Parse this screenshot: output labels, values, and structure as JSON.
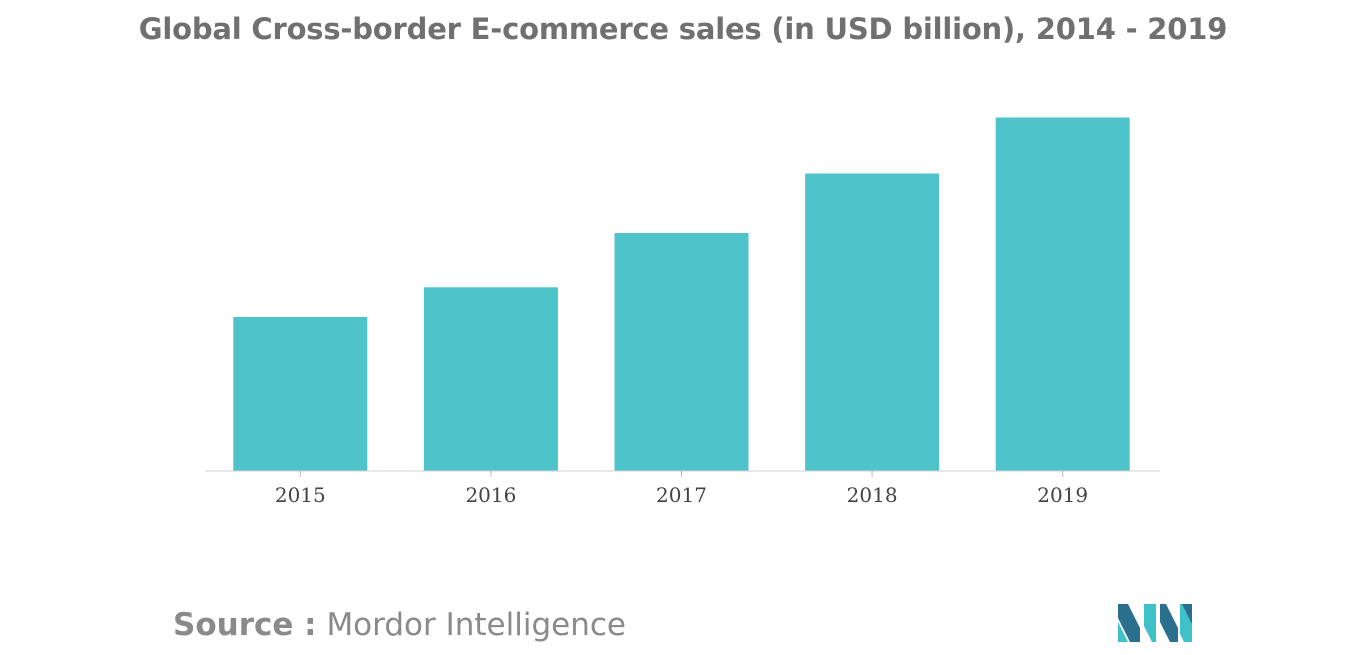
{
  "chart_data": {
    "type": "bar",
    "title": "Global Cross-border E-commerce sales (in USD billion), 2014 - 2019",
    "categories": [
      "2015",
      "2016",
      "2017",
      "2018",
      "2019"
    ],
    "values": [
      44,
      52.5,
      68,
      85,
      101
    ],
    "xlabel": "",
    "ylabel": "",
    "ylim": [
      0,
      120
    ],
    "grid": false,
    "legend": "none",
    "bar_color": "#4fc3ca"
  },
  "footer": {
    "source_label": "Source :",
    "source_name": "Mordor Intelligence"
  },
  "colors": {
    "title": "#707070",
    "bar": "#4fc3ca",
    "logo_dark": "#2b6f8f",
    "logo_light": "#3fc1c9"
  }
}
